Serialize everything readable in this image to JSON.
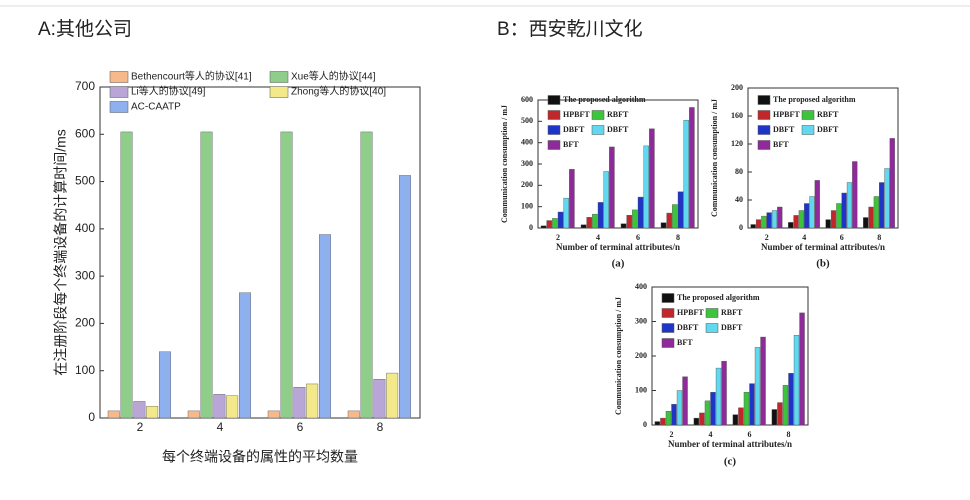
{
  "headings": [
    "A:其他公司",
    "B：西安乾川文化"
  ],
  "chart_data": [
    {
      "type": "bar",
      "categories": [
        "2",
        "4",
        "6",
        "8"
      ],
      "series": [
        {
          "name": "Bethencourt等人的协议[41]",
          "color": "#f5b98c",
          "values": [
            15,
            15,
            15,
            15
          ]
        },
        {
          "name": "Xue等人的协议[44]",
          "color": "#8fce8a",
          "values": [
            605,
            605,
            605,
            605
          ]
        },
        {
          "name": "Li等人的协议[49]",
          "color": "#b7a6d6",
          "values": [
            35,
            50,
            65,
            82
          ]
        },
        {
          "name": "Zhong等人的协议[40]",
          "color": "#f3e98a",
          "values": [
            25,
            47,
            72,
            95
          ]
        },
        {
          "name": "AC-CAATP",
          "color": "#8fb0ee",
          "values": [
            140,
            265,
            388,
            513
          ]
        }
      ],
      "ylim": [
        0,
        700
      ],
      "yticks": [
        0,
        100,
        200,
        300,
        400,
        500,
        600,
        700
      ],
      "y_label": "在注册阶段每个终端设备的计算时间/ms",
      "x_label": "每个终端设备的属性的平均数量"
    },
    {
      "type": "bar",
      "categories": [
        "2",
        "4",
        "6",
        "8"
      ],
      "series": [
        {
          "name": "The proposed algorithm",
          "color": "#111111",
          "values": [
            10,
            15,
            20,
            25
          ]
        },
        {
          "name": "HPBFT",
          "color": "#c0262a",
          "values": [
            35,
            50,
            60,
            70
          ]
        },
        {
          "name": "RBFT",
          "color": "#3cc43c",
          "values": [
            45,
            65,
            85,
            110
          ]
        },
        {
          "name": "DBFT",
          "color": "#1f35c8",
          "values": [
            75,
            120,
            145,
            170
          ]
        },
        {
          "name": "DBFT",
          "color": "#5fd8f0",
          "values": [
            140,
            265,
            385,
            505
          ]
        },
        {
          "name": "BFT",
          "color": "#8e2a9a",
          "values": [
            275,
            380,
            465,
            565
          ]
        }
      ],
      "ylim": [
        0,
        600
      ],
      "yticks": [
        0,
        100,
        200,
        300,
        400,
        500,
        600
      ],
      "y_label": "Communication consumption / mJ",
      "x_label": "Number of terminal attributes/n",
      "caption": "(a)"
    },
    {
      "type": "bar",
      "categories": [
        "2",
        "4",
        "6",
        "8"
      ],
      "series": [
        {
          "name": "The proposed algorithm",
          "color": "#111111",
          "values": [
            5,
            8,
            12,
            15
          ]
        },
        {
          "name": "HPBFT",
          "color": "#c0262a",
          "values": [
            12,
            18,
            25,
            30
          ]
        },
        {
          "name": "RBFT",
          "color": "#3cc43c",
          "values": [
            17,
            25,
            35,
            45
          ]
        },
        {
          "name": "DBFT",
          "color": "#1f35c8",
          "values": [
            22,
            35,
            50,
            65
          ]
        },
        {
          "name": "DBFT",
          "color": "#5fd8f0",
          "values": [
            25,
            45,
            65,
            85
          ]
        },
        {
          "name": "BFT",
          "color": "#8e2a9a",
          "values": [
            30,
            68,
            95,
            128
          ]
        }
      ],
      "ylim": [
        0,
        200
      ],
      "yticks": [
        0,
        40,
        80,
        120,
        160,
        200
      ],
      "y_label": "Communication consumption / mJ",
      "x_label": "Number of terminal attributes/n",
      "caption": "(b)"
    },
    {
      "type": "bar",
      "categories": [
        "2",
        "4",
        "6",
        "8"
      ],
      "series": [
        {
          "name": "The proposed algorithm",
          "color": "#111111",
          "values": [
            10,
            20,
            30,
            45
          ]
        },
        {
          "name": "HPBFT",
          "color": "#c0262a",
          "values": [
            20,
            35,
            50,
            65
          ]
        },
        {
          "name": "RBFT",
          "color": "#3cc43c",
          "values": [
            40,
            70,
            95,
            115
          ]
        },
        {
          "name": "DBFT",
          "color": "#1f35c8",
          "values": [
            60,
            95,
            120,
            150
          ]
        },
        {
          "name": "DBFT",
          "color": "#5fd8f0",
          "values": [
            100,
            165,
            225,
            260
          ]
        },
        {
          "name": "BFT",
          "color": "#8e2a9a",
          "values": [
            140,
            185,
            255,
            325
          ]
        }
      ],
      "ylim": [
        0,
        400
      ],
      "yticks": [
        0,
        100,
        200,
        300,
        400
      ],
      "y_label": "Communication consumption / mJ",
      "x_label": "Number of terminal attributes/n",
      "caption": "(c)"
    }
  ]
}
